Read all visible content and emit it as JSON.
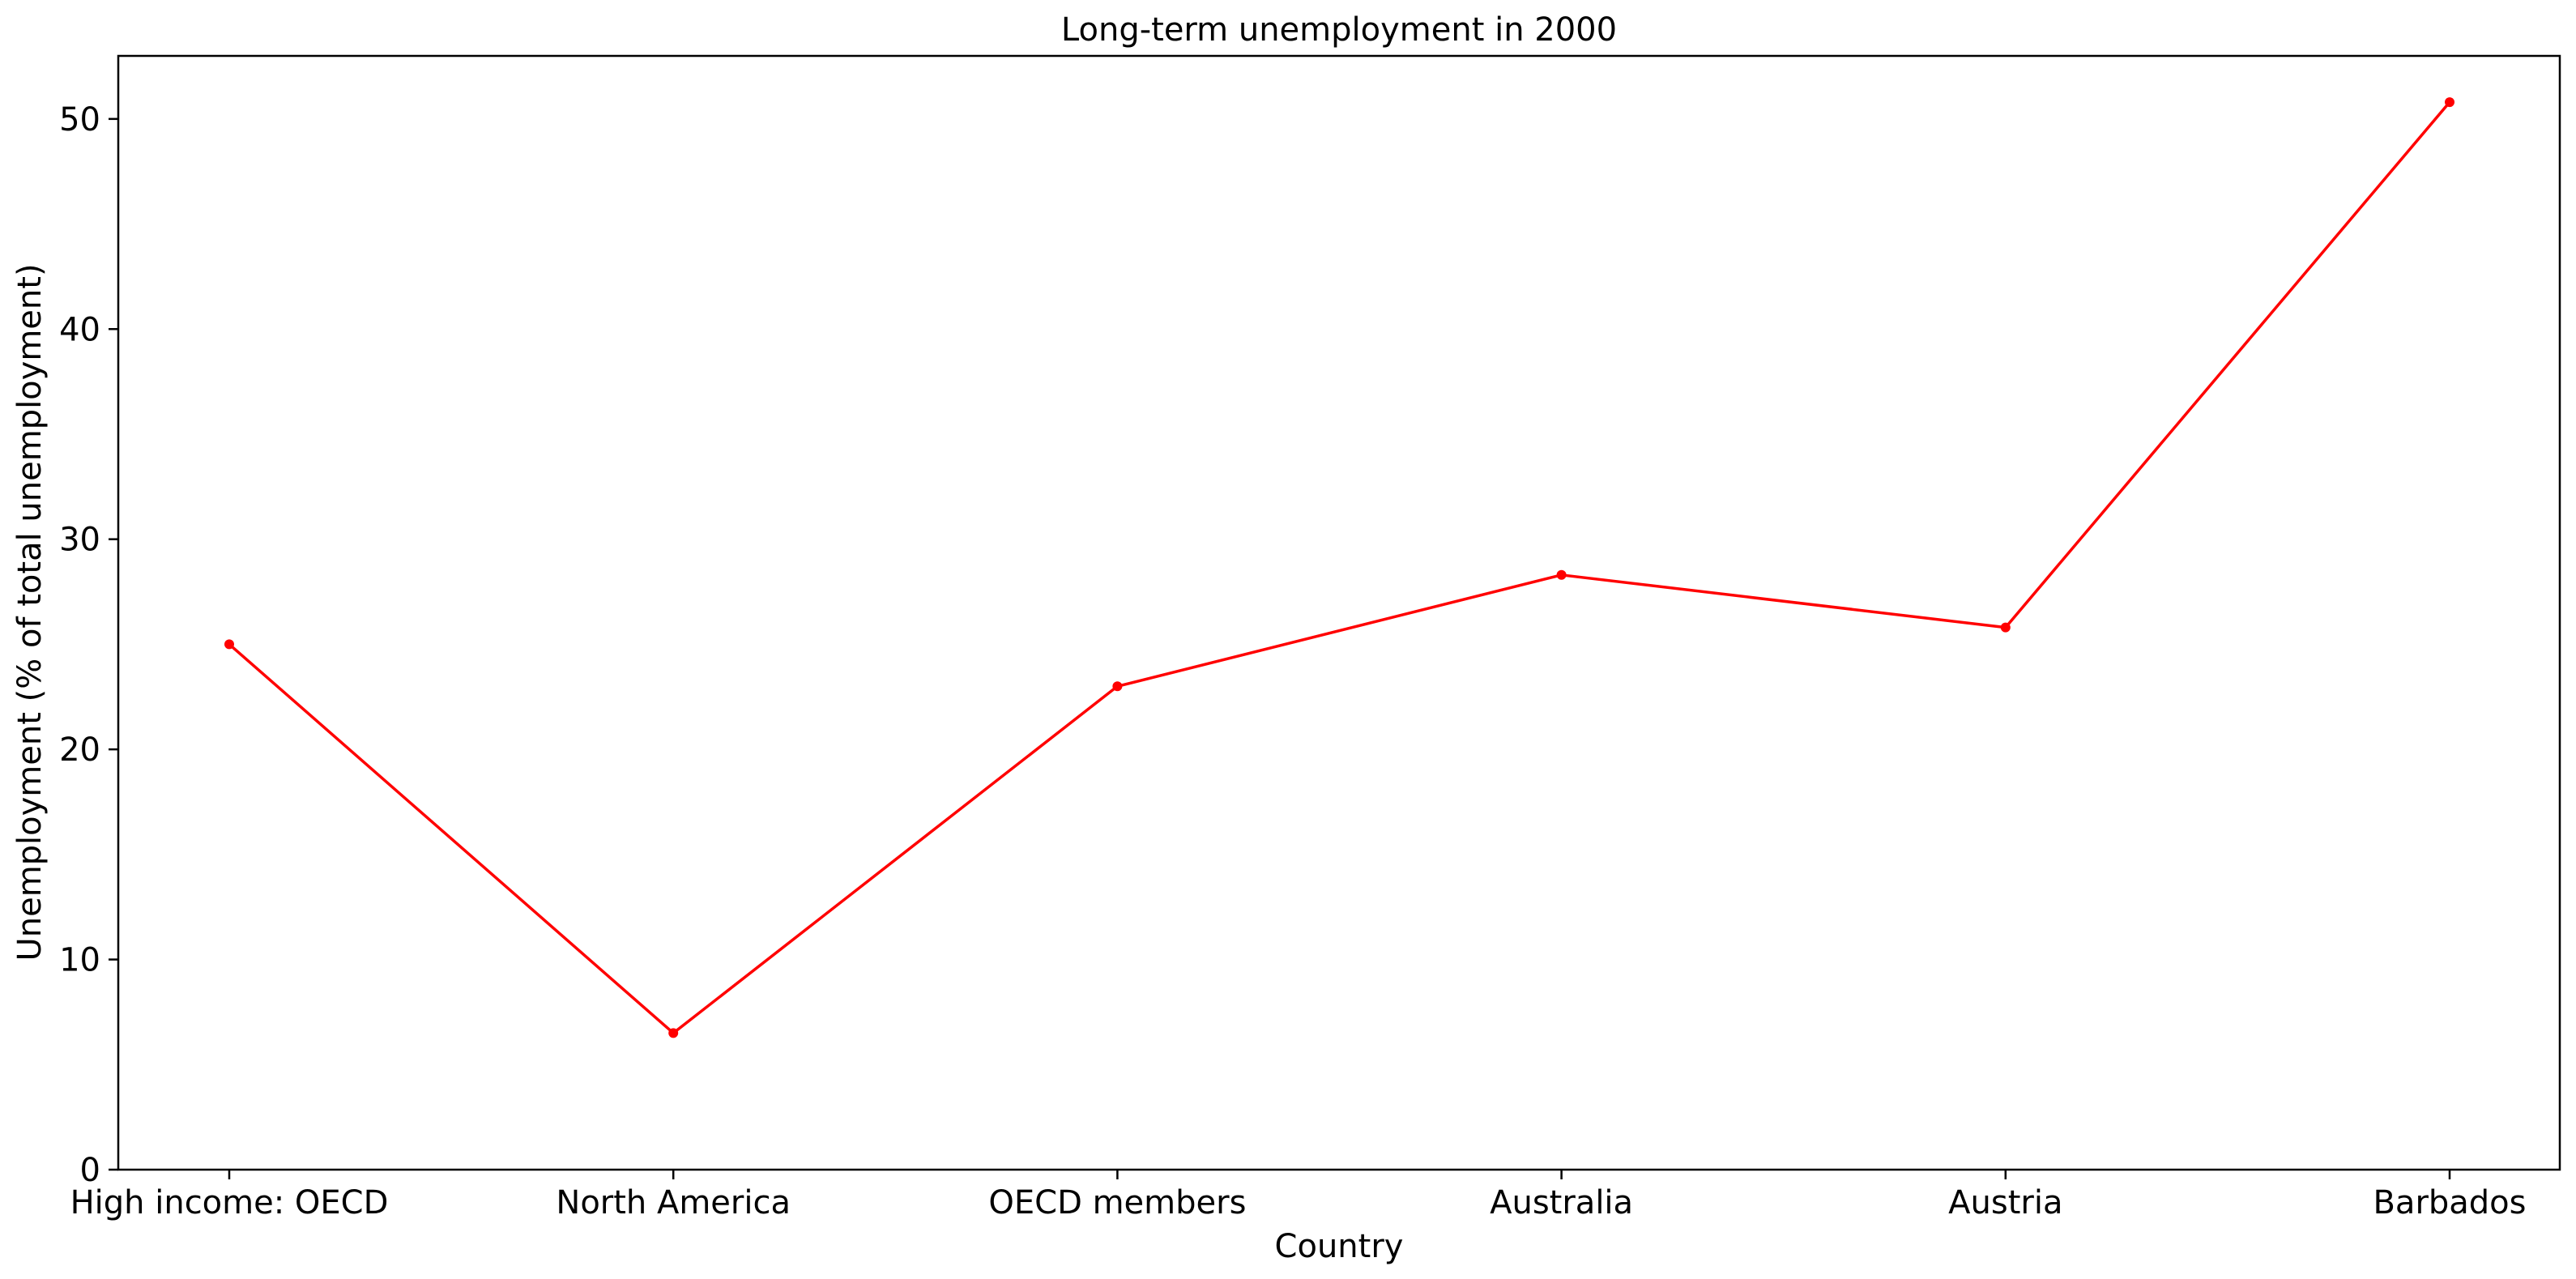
{
  "chart_data": {
    "type": "line",
    "title": "Long-term unemployment in 2000",
    "xlabel": "Country",
    "ylabel": "Unemployment (% of total unemployment)",
    "categories": [
      "High income: OECD",
      "North America",
      "OECD members",
      "Australia",
      "Austria",
      "Barbados"
    ],
    "series": [
      {
        "values": [
          25.0,
          6.5,
          23.0,
          28.3,
          25.8,
          50.8
        ],
        "color": "#ff0000"
      }
    ],
    "ylim": [
      0,
      53
    ],
    "yticks": [
      0,
      10,
      20,
      30,
      40,
      50
    ],
    "grid": false,
    "legend": "none"
  }
}
